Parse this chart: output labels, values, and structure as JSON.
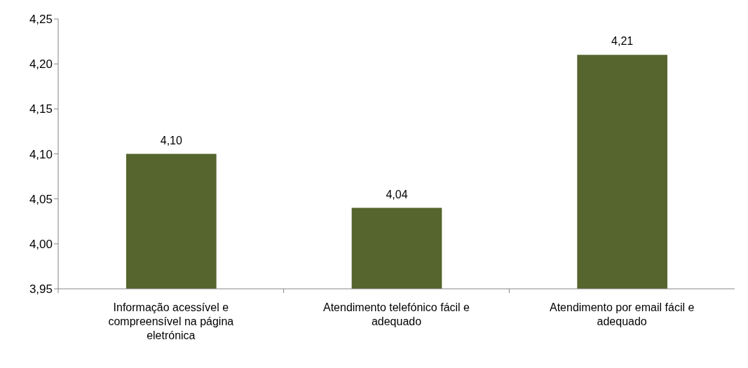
{
  "chart_data": {
    "type": "bar",
    "categories": [
      "Informação acessível e compreensível na página eletrónica",
      "Atendimento telefónico fácil e adequado",
      "Atendimento por email fácil e adequado"
    ],
    "values": [
      4.1,
      4.04,
      4.21
    ],
    "value_labels": [
      "4,10",
      "4,04",
      "4,21"
    ],
    "color": "#55652d",
    "ylim": [
      3.95,
      4.25
    ],
    "yticks": [
      {
        "value": 3.95,
        "label": "3,95"
      },
      {
        "value": 4.0,
        "label": "4,00"
      },
      {
        "value": 4.05,
        "label": "4,05"
      },
      {
        "value": 4.1,
        "label": "4,10"
      },
      {
        "value": 4.15,
        "label": "4,15"
      },
      {
        "value": 4.2,
        "label": "4,20"
      },
      {
        "value": 4.25,
        "label": "4,25"
      }
    ]
  }
}
